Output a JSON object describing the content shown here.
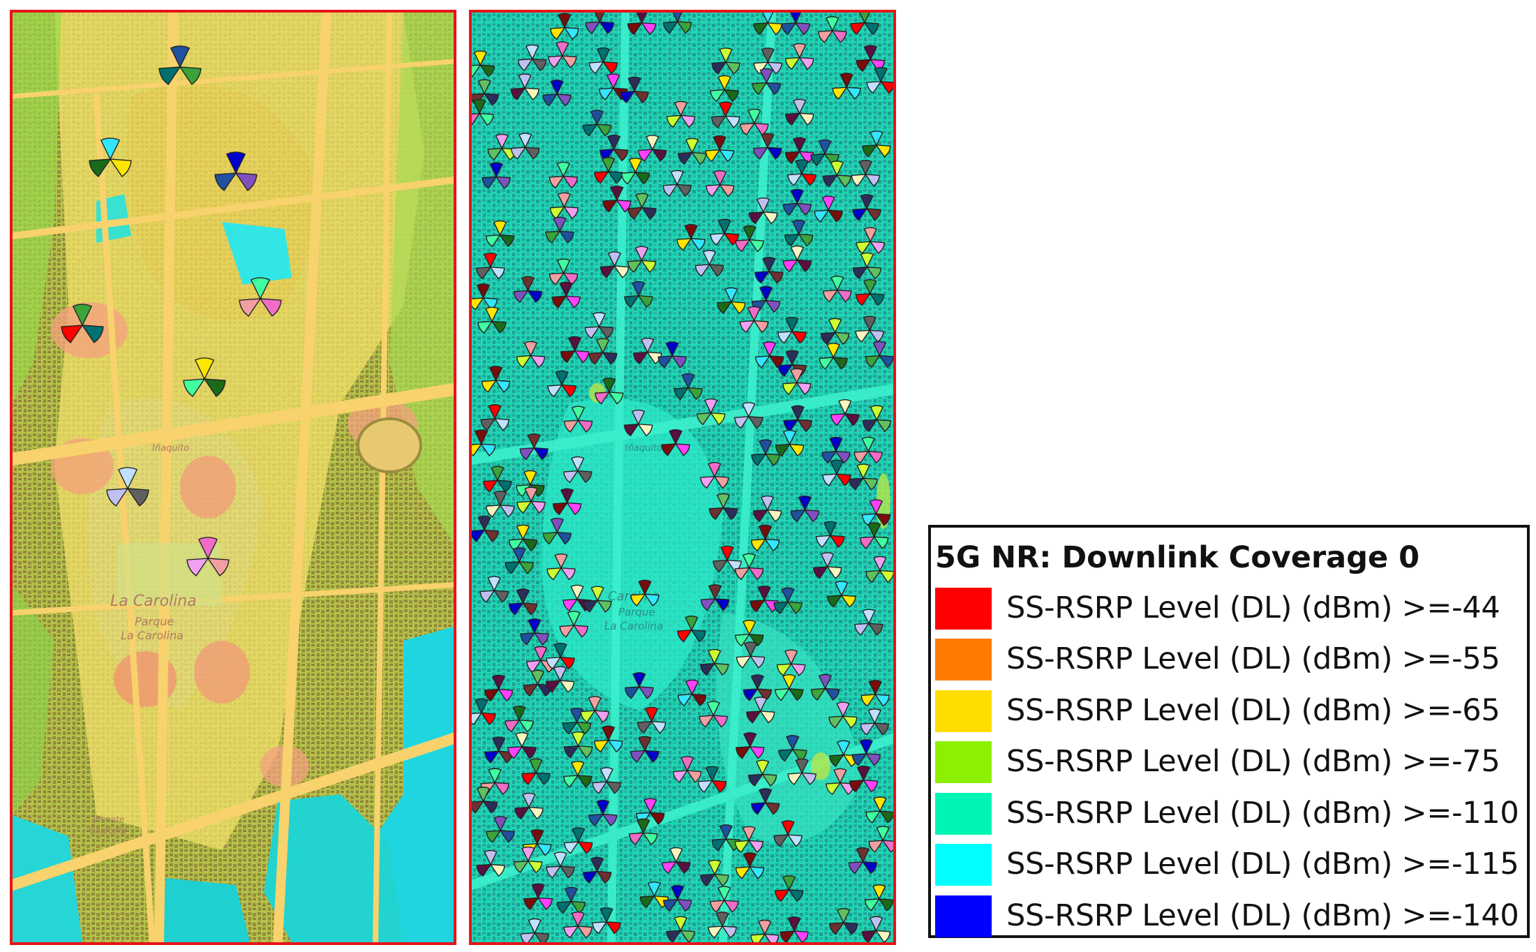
{
  "maps": {
    "left": {
      "labels": [
        {
          "text": "La Carolina"
        },
        {
          "text": "Parque"
        },
        {
          "text": "La Carolina"
        },
        {
          "text": "Iñaquito"
        },
        {
          "text": "Vicente"
        },
        {
          "text": "Carcoela"
        }
      ]
    },
    "right": {
      "labels": [
        {
          "text": "Carolina"
        },
        {
          "text": "Parque"
        },
        {
          "text": "La Carolina"
        },
        {
          "text": "Iñaquito"
        }
      ]
    },
    "sector_palette": [
      "#7a0c0c",
      "#f06cc8",
      "#2d2d5c",
      "#3aa33a",
      "#c0c0f0",
      "#33e6ff",
      "#f0a0a0",
      "#6e3030",
      "#007070",
      "#f5f5c0",
      "#ffe600",
      "#f0a0f0",
      "#0000cc",
      "#ff0000",
      "#5a1040",
      "#1a6a1a",
      "#ccff33",
      "#8050c0",
      "#c0e0ff",
      "#ff40ff",
      "#40ffa0",
      "#60c060",
      "#2050a0",
      "#606060"
    ]
  },
  "legend": {
    "title": "5G NR: Downlink Coverage 0",
    "items": [
      {
        "color": "#ff0000",
        "label": "SS-RSRP Level (DL) (dBm) >=-44"
      },
      {
        "color": "#ff7a00",
        "label": "SS-RSRP Level (DL) (dBm) >=-55"
      },
      {
        "color": "#ffdd00",
        "label": "SS-RSRP Level (DL) (dBm) >=-65"
      },
      {
        "color": "#8cf000",
        "label": "SS-RSRP Level (DL) (dBm) >=-75"
      },
      {
        "color": "#00f5b4",
        "label": "SS-RSRP Level (DL) (dBm) >=-110"
      },
      {
        "color": "#00ffff",
        "label": "SS-RSRP Level (DL) (dBm) >=-115"
      },
      {
        "color": "#0000ff",
        "label": "SS-RSRP Level (DL) (dBm) >=-140"
      }
    ]
  }
}
